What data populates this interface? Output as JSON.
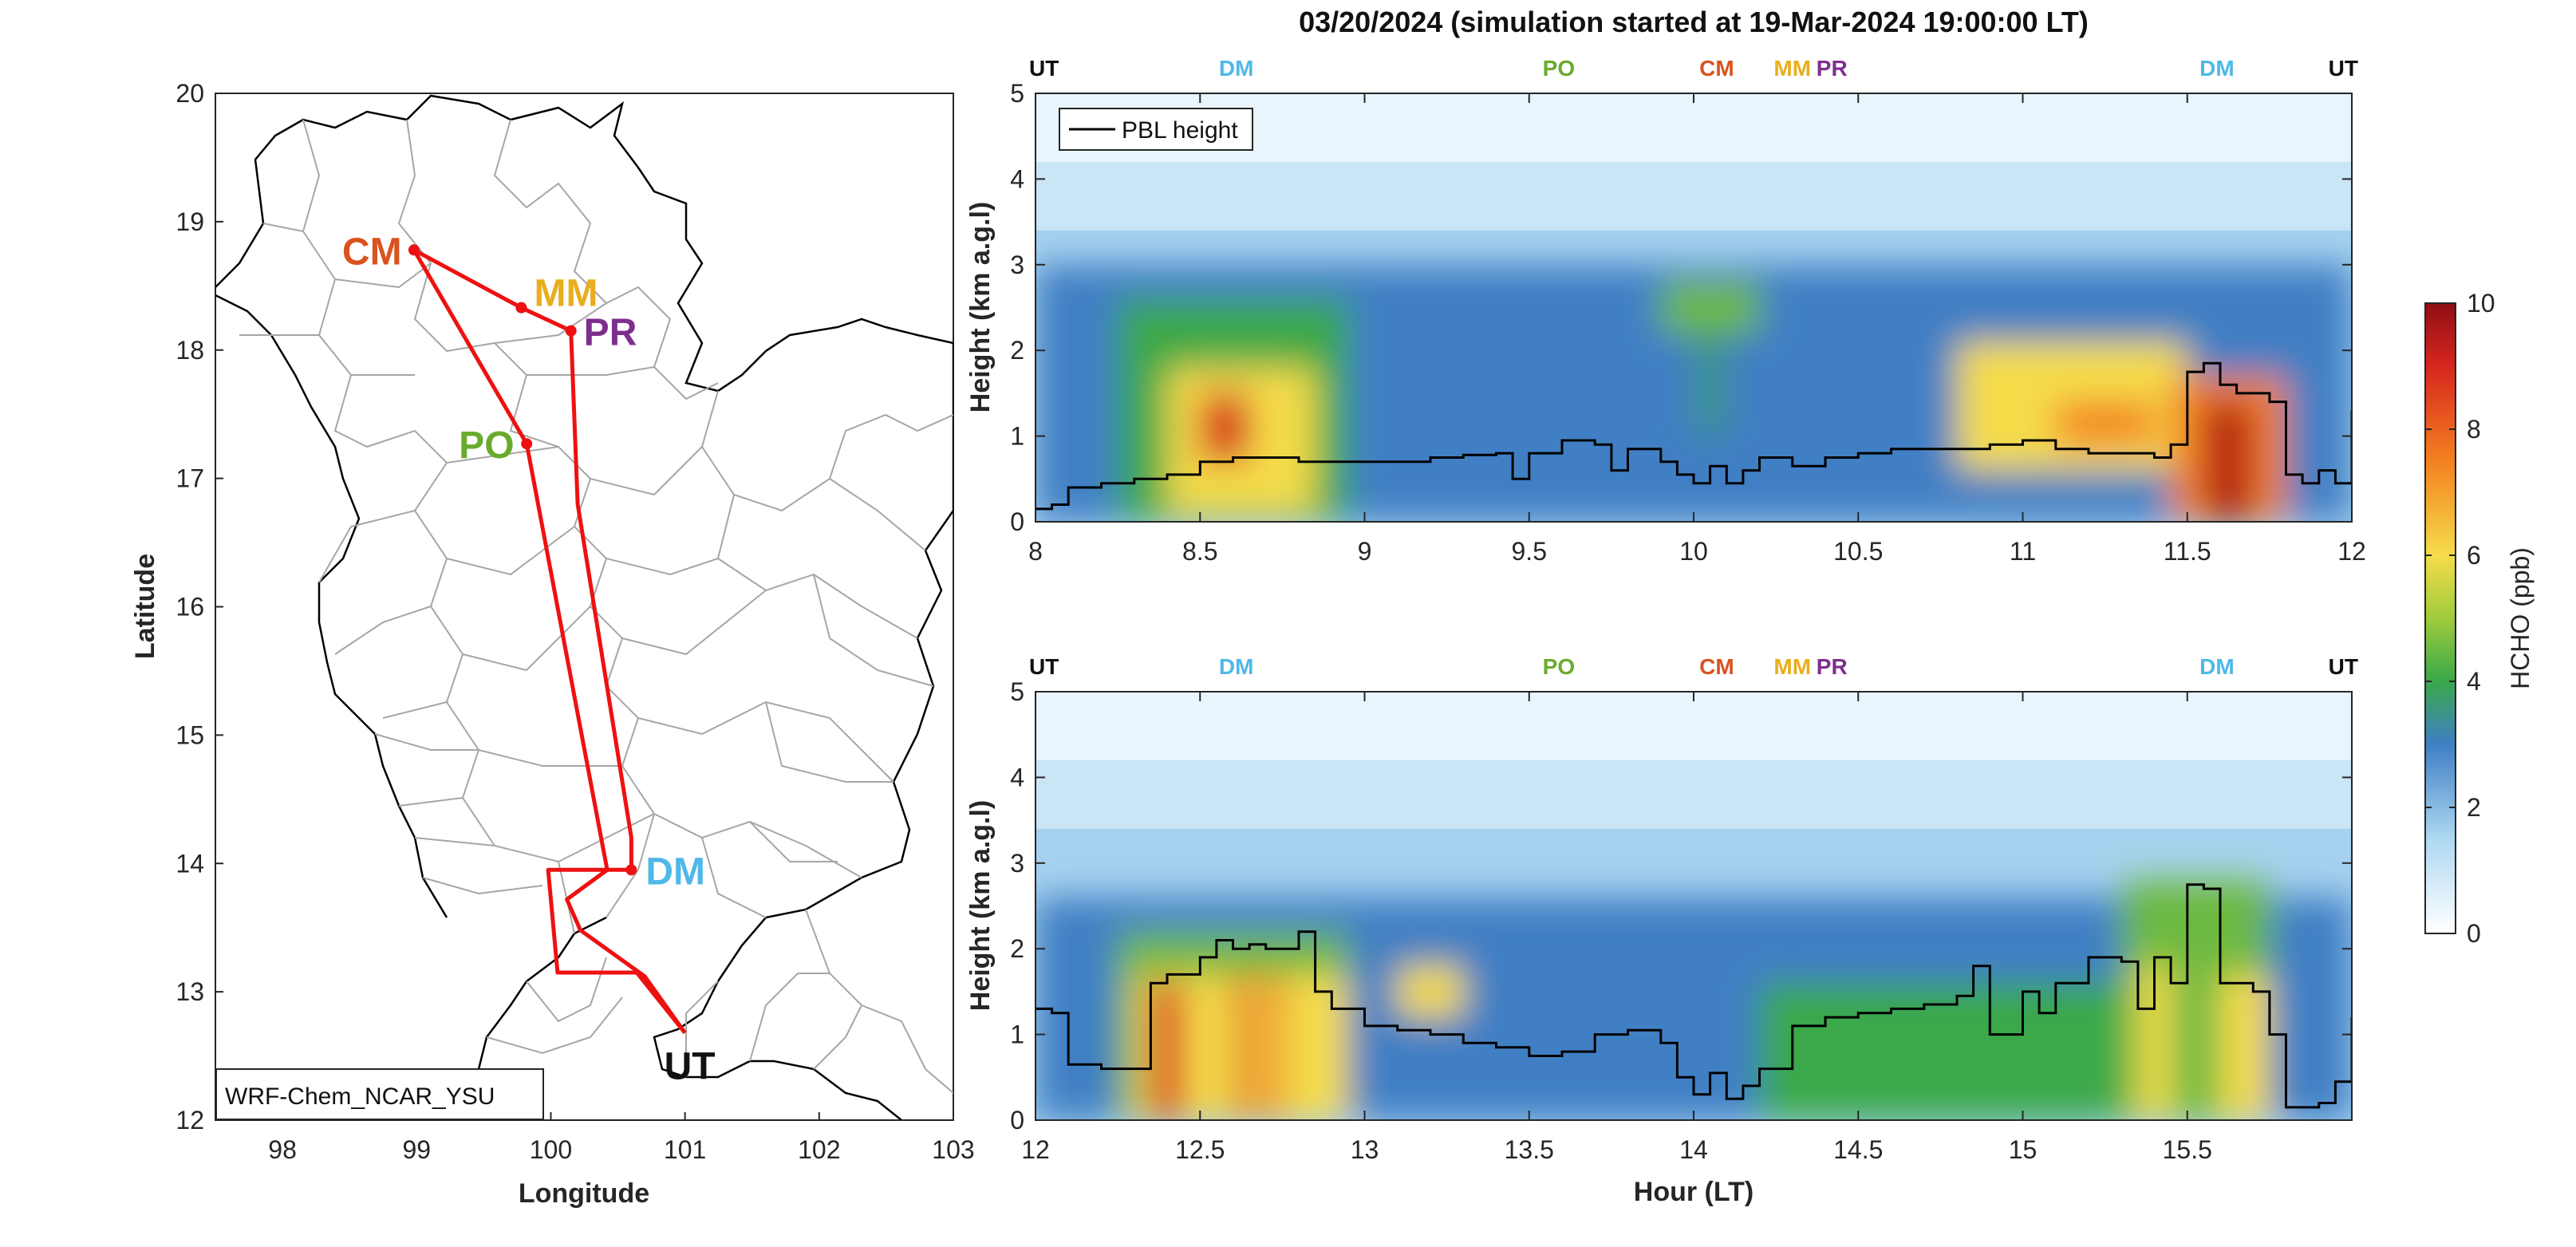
{
  "title": "03/20/2024 (simulation started at 19-Mar-2024 19:00:00 LT)",
  "colors": {
    "UT": "#111111",
    "DM": "#4fb8e8",
    "PO": "#6aab2e",
    "CM": "#d9531e",
    "MM": "#e8ae1c",
    "PR": "#7e2f8e",
    "track": "#ee1111",
    "pbl": "#000000"
  },
  "map": {
    "label": "WRF-Chem_NCAR_YSU",
    "xlabel": "Longitude",
    "ylabel": "Latitude",
    "xlim": [
      97.5,
      103
    ],
    "ylim": [
      12,
      20
    ],
    "xticks": [
      98,
      99,
      100,
      101,
      102,
      103
    ],
    "yticks": [
      12,
      13,
      14,
      15,
      16,
      17,
      18,
      19,
      20
    ],
    "sites": [
      {
        "name": "CM",
        "lon": 98.98,
        "lat": 18.78,
        "color_key": "CM"
      },
      {
        "name": "MM",
        "lon": 99.78,
        "lat": 18.33,
        "color_key": "MM"
      },
      {
        "name": "PR",
        "lon": 100.15,
        "lat": 18.15,
        "color_key": "PR"
      },
      {
        "name": "PO",
        "lon": 99.82,
        "lat": 17.27,
        "color_key": "PO"
      },
      {
        "name": "DM",
        "lon": 100.6,
        "lat": 13.95,
        "color_key": "DM"
      },
      {
        "name": "UT",
        "lon": 101.0,
        "lat": 12.68,
        "color_key": "UT"
      }
    ],
    "track": [
      [
        101.0,
        12.68
      ],
      [
        100.64,
        13.15
      ],
      [
        100.05,
        13.15
      ],
      [
        99.98,
        13.95
      ],
      [
        100.6,
        13.95
      ],
      [
        100.6,
        14.2
      ],
      [
        100.2,
        16.8
      ],
      [
        100.15,
        18.15
      ],
      [
        99.78,
        18.33
      ],
      [
        98.98,
        18.78
      ],
      [
        99.82,
        17.27
      ],
      [
        100.42,
        13.95
      ],
      [
        100.12,
        13.72
      ],
      [
        100.22,
        13.48
      ],
      [
        100.7,
        13.12
      ],
      [
        101.0,
        12.68
      ]
    ]
  },
  "chart_data": [
    {
      "type": "heatmap",
      "name": "panel-1",
      "xlim": [
        8,
        12
      ],
      "ylim": [
        0,
        5
      ],
      "xticks": [
        8,
        8.5,
        9,
        9.5,
        10,
        10.5,
        11,
        11.5,
        12
      ],
      "xtick_labels": [
        "8",
        "8.5",
        "9",
        "9.5",
        "10",
        "10.5",
        "11",
        "11.5",
        "12"
      ],
      "yticks": [
        0,
        1,
        2,
        3,
        4,
        5
      ],
      "ylabel": "Height (km a.g.l)",
      "xlabel": "",
      "legend": {
        "label": "PBL height",
        "placement": "top-left"
      },
      "site_markers": [
        {
          "name": "UT",
          "x": 8.0,
          "color_key": "UT"
        },
        {
          "name": "DM",
          "x": 8.61,
          "color_key": "DM"
        },
        {
          "name": "PO",
          "x": 9.59,
          "color_key": "PO"
        },
        {
          "name": "CM",
          "x": 10.07,
          "color_key": "CM"
        },
        {
          "name": "MM",
          "x": 10.3,
          "color_key": "MM"
        },
        {
          "name": "PR",
          "x": 10.42,
          "color_key": "PR"
        },
        {
          "name": "DM",
          "x": 11.59,
          "color_key": "DM"
        },
        {
          "name": "UT",
          "x": 12.0,
          "color_key": "UT"
        }
      ],
      "pbl_height": {
        "x": [
          8.0,
          8.05,
          8.1,
          8.2,
          8.3,
          8.4,
          8.5,
          8.6,
          8.7,
          8.8,
          8.9,
          9.0,
          9.1,
          9.2,
          9.3,
          9.4,
          9.45,
          9.5,
          9.6,
          9.7,
          9.75,
          9.8,
          9.9,
          9.95,
          10.0,
          10.05,
          10.1,
          10.15,
          10.2,
          10.3,
          10.4,
          10.5,
          10.6,
          10.7,
          10.8,
          10.9,
          11.0,
          11.1,
          11.2,
          11.3,
          11.4,
          11.45,
          11.5,
          11.55,
          11.6,
          11.65,
          11.7,
          11.75,
          11.8,
          11.85,
          11.9,
          11.95,
          12.0
        ],
        "values": [
          0.15,
          0.2,
          0.4,
          0.45,
          0.5,
          0.55,
          0.7,
          0.75,
          0.75,
          0.7,
          0.7,
          0.7,
          0.7,
          0.75,
          0.78,
          0.8,
          0.5,
          0.8,
          0.95,
          0.9,
          0.6,
          0.85,
          0.7,
          0.55,
          0.45,
          0.65,
          0.45,
          0.6,
          0.75,
          0.65,
          0.75,
          0.8,
          0.85,
          0.85,
          0.85,
          0.9,
          0.95,
          0.85,
          0.8,
          0.8,
          0.75,
          0.9,
          1.75,
          1.85,
          1.6,
          1.5,
          1.5,
          1.4,
          0.55,
          0.45,
          0.6,
          0.45,
          1.3
        ]
      },
      "hcho_features": [
        {
          "x": [
            8.0,
            12.0
          ],
          "y": [
            0.0,
            3.0
          ],
          "ppb": 3.0
        },
        {
          "x": [
            8.25,
            8.95
          ],
          "y": [
            0.0,
            2.6
          ],
          "ppb": 4.0
        },
        {
          "x": [
            8.4,
            8.85
          ],
          "y": [
            0.1,
            1.8
          ],
          "ppb": 6.0
        },
        {
          "x": [
            8.5,
            8.65
          ],
          "y": [
            0.7,
            1.5
          ],
          "ppb": 9.0
        },
        {
          "x": [
            9.9,
            10.2
          ],
          "y": [
            2.2,
            2.8
          ],
          "ppb": 4.5
        },
        {
          "x": [
            10.0,
            10.1
          ],
          "y": [
            1.0,
            2.2
          ],
          "ppb": 3.5
        },
        {
          "x": [
            10.8,
            11.5
          ],
          "y": [
            0.6,
            2.1
          ],
          "ppb": 6.0
        },
        {
          "x": [
            11.1,
            11.4
          ],
          "y": [
            0.9,
            1.4
          ],
          "ppb": 7.5
        },
        {
          "x": [
            11.45,
            11.8
          ],
          "y": [
            0.0,
            1.7
          ],
          "ppb": 7.5
        },
        {
          "x": [
            11.55,
            11.7
          ],
          "y": [
            0.0,
            1.4
          ],
          "ppb": 9.5
        }
      ]
    },
    {
      "type": "heatmap",
      "name": "panel-2",
      "xlim": [
        12,
        16
      ],
      "ylim": [
        0,
        5
      ],
      "xticks": [
        12,
        12.5,
        13,
        13.5,
        14,
        14.5,
        15,
        15.5
      ],
      "xtick_labels": [
        "12",
        "12.5",
        "13",
        "13.5",
        "14",
        "14.5",
        "15",
        "15.5"
      ],
      "yticks": [
        0,
        1,
        2,
        3,
        4,
        5
      ],
      "ylabel": "Height (km a.g.l)",
      "xlabel": "Hour (LT)",
      "site_markers": [
        {
          "name": "UT",
          "x": 12.0,
          "color_key": "UT"
        },
        {
          "name": "DM",
          "x": 12.61,
          "color_key": "DM"
        },
        {
          "name": "PO",
          "x": 13.59,
          "color_key": "PO"
        },
        {
          "name": "CM",
          "x": 14.07,
          "color_key": "CM"
        },
        {
          "name": "MM",
          "x": 14.3,
          "color_key": "MM"
        },
        {
          "name": "PR",
          "x": 14.42,
          "color_key": "PR"
        },
        {
          "name": "DM",
          "x": 15.59,
          "color_key": "DM"
        },
        {
          "name": "UT",
          "x": 16.0,
          "color_key": "UT"
        }
      ],
      "pbl_height": {
        "x": [
          12.0,
          12.05,
          12.1,
          12.2,
          12.3,
          12.35,
          12.4,
          12.5,
          12.55,
          12.6,
          12.65,
          12.7,
          12.8,
          12.85,
          12.9,
          13.0,
          13.1,
          13.2,
          13.3,
          13.4,
          13.5,
          13.6,
          13.7,
          13.8,
          13.9,
          13.95,
          14.0,
          14.05,
          14.1,
          14.15,
          14.2,
          14.3,
          14.4,
          14.5,
          14.6,
          14.7,
          14.8,
          14.85,
          14.9,
          15.0,
          15.05,
          15.1,
          15.2,
          15.3,
          15.35,
          15.4,
          15.45,
          15.5,
          15.55,
          15.6,
          15.7,
          15.75,
          15.8,
          15.9,
          15.95,
          16.0
        ],
        "values": [
          1.3,
          1.25,
          0.65,
          0.6,
          0.6,
          1.6,
          1.7,
          1.9,
          2.1,
          2.0,
          2.05,
          2.0,
          2.2,
          1.5,
          1.3,
          1.1,
          1.05,
          1.0,
          0.9,
          0.85,
          0.75,
          0.8,
          1.0,
          1.05,
          0.9,
          0.5,
          0.3,
          0.55,
          0.25,
          0.4,
          0.6,
          1.1,
          1.2,
          1.25,
          1.3,
          1.35,
          1.45,
          1.8,
          1.0,
          1.5,
          1.25,
          1.6,
          1.9,
          1.85,
          1.3,
          1.9,
          1.6,
          2.75,
          2.7,
          1.6,
          1.5,
          1.0,
          0.15,
          0.2,
          0.45,
          1.2
        ]
      },
      "hcho_features": [
        {
          "x": [
            12.0,
            16.0
          ],
          "y": [
            0.0,
            2.6
          ],
          "ppb": 3.0
        },
        {
          "x": [
            12.25,
            12.95
          ],
          "y": [
            0.0,
            2.2
          ],
          "ppb": 4.5
        },
        {
          "x": [
            12.3,
            12.95
          ],
          "y": [
            0.0,
            1.7
          ],
          "ppb": 6.0
        },
        {
          "x": [
            12.35,
            12.45
          ],
          "y": [
            0.0,
            1.6
          ],
          "ppb": 9.0
        },
        {
          "x": [
            12.6,
            12.65
          ],
          "y": [
            0.0,
            1.7
          ],
          "ppb": 8.5
        },
        {
          "x": [
            12.7,
            12.75
          ],
          "y": [
            0.0,
            1.7
          ],
          "ppb": 8.0
        },
        {
          "x": [
            13.1,
            13.3
          ],
          "y": [
            1.2,
            1.8
          ],
          "ppb": 6.0
        },
        {
          "x": [
            14.2,
            15.3
          ],
          "y": [
            0.0,
            1.6
          ],
          "ppb": 4.0
        },
        {
          "x": [
            15.3,
            15.75
          ],
          "y": [
            0.0,
            2.8
          ],
          "ppb": 4.5
        },
        {
          "x": [
            15.35,
            15.45
          ],
          "y": [
            0.0,
            1.8
          ],
          "ppb": 6.0
        },
        {
          "x": [
            15.6,
            15.75
          ],
          "y": [
            0.0,
            1.7
          ],
          "ppb": 6.0
        }
      ]
    }
  ],
  "colorbar": {
    "label": "HCHO (ppb)",
    "min": 0,
    "max": 10,
    "ticks": [
      0,
      2,
      4,
      6,
      8,
      10
    ],
    "stops": [
      {
        "v": 0,
        "c": "#ffffff"
      },
      {
        "v": 1.5,
        "c": "#aed8f2"
      },
      {
        "v": 3,
        "c": "#3f7fc4"
      },
      {
        "v": 4,
        "c": "#3aa84a"
      },
      {
        "v": 5,
        "c": "#9fcc3b"
      },
      {
        "v": 6,
        "c": "#f5dc4a"
      },
      {
        "v": 7.5,
        "c": "#f38120"
      },
      {
        "v": 9,
        "c": "#d7261e"
      },
      {
        "v": 10,
        "c": "#8f0e14"
      }
    ]
  }
}
